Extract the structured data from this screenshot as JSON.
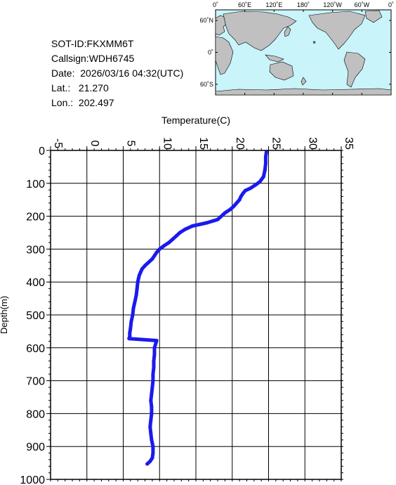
{
  "header": {
    "sot_id": "SOT-ID:FKXMM6T",
    "callsign": "Callsign:WDH6745",
    "date": "Date:  2026/03/16 04:32(UTC)",
    "lat": "Lat.:   21.270",
    "lon": "Lon.:  202.497"
  },
  "map": {
    "lon_labels": [
      "0˚",
      "60˚E",
      "120˚E",
      "180˚",
      "120˚W",
      "60˚W",
      "0˚"
    ],
    "lat_labels": [
      "60˚N",
      "0˚",
      "60˚S"
    ],
    "marker_lat": 21.27,
    "marker_lon": 202.497,
    "marker_color": "#ff0000",
    "ocean_color": "#c8f4fa",
    "land_color": "#c0c0c0"
  },
  "chart_data": {
    "type": "line",
    "xlabel": "Temperature(C)",
    "ylabel": "Depth(m)",
    "xlim": [
      -5,
      35
    ],
    "ylim": [
      1000,
      0
    ],
    "x_ticks": [
      "-5",
      "0",
      "5",
      "10",
      "15",
      "20",
      "25",
      "30",
      "35"
    ],
    "y_ticks": [
      "0",
      "100",
      "200",
      "300",
      "400",
      "500",
      "600",
      "700",
      "800",
      "900",
      "1000"
    ],
    "grid": true,
    "series_color": "#1a1aee",
    "series": [
      {
        "depth": [
          5,
          20,
          40,
          60,
          80,
          95,
          105,
          115,
          122,
          130,
          140,
          150,
          160,
          170,
          180,
          190,
          200,
          210,
          220,
          225,
          230,
          240,
          250,
          260,
          270,
          280,
          290,
          300,
          310,
          320,
          330,
          340,
          350,
          360,
          370,
          380,
          390,
          400,
          420,
          440,
          460,
          480,
          500,
          520,
          540,
          555,
          565,
          572,
          578,
          585,
          600,
          620,
          640,
          660,
          680,
          700,
          720,
          740,
          760,
          780,
          800,
          820,
          840,
          860,
          880,
          900,
          920,
          935,
          945,
          953
        ],
        "temperature": [
          24.7,
          24.6,
          24.6,
          24.5,
          24.3,
          23.8,
          23.2,
          22.5,
          21.8,
          21.5,
          21.2,
          21.0,
          20.6,
          20.2,
          19.7,
          19.0,
          18.5,
          18.0,
          16.5,
          15.5,
          14.5,
          13.5,
          12.8,
          12.3,
          11.8,
          11.3,
          10.6,
          10.0,
          9.6,
          9.3,
          9.0,
          8.5,
          8.0,
          7.6,
          7.4,
          7.2,
          7.1,
          7.0,
          6.9,
          6.8,
          6.6,
          6.4,
          6.3,
          6.1,
          6.0,
          5.9,
          5.9,
          5.8,
          9.6,
          9.5,
          9.3,
          9.3,
          9.2,
          9.2,
          9.1,
          9.1,
          9.0,
          8.9,
          8.8,
          8.9,
          8.9,
          8.8,
          8.7,
          8.8,
          8.9,
          9.1,
          9.1,
          9.0,
          8.7,
          8.3
        ]
      }
    ]
  }
}
